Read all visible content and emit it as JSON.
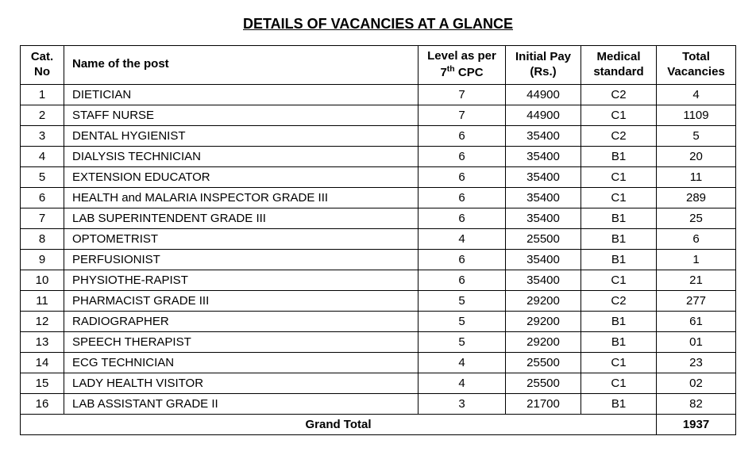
{
  "title": "DETAILS OF VACANCIES AT A GLANCE",
  "table": {
    "headers": {
      "cat": "Cat.\nNo",
      "name": "Name of the post",
      "level_pre": "Level as per\n7",
      "level_sup": "th",
      "level_post": " CPC",
      "pay": "Initial\nPay (Rs.)",
      "med": "Medical\nstandard",
      "vac": "Total\nVacancies"
    },
    "rows": [
      {
        "cat": "1",
        "name": "DIETICIAN",
        "level": "7",
        "pay": "44900",
        "med": "C2",
        "vac": "4"
      },
      {
        "cat": "2",
        "name": "STAFF NURSE",
        "level": "7",
        "pay": "44900",
        "med": "C1",
        "vac": "1109"
      },
      {
        "cat": "3",
        "name": "DENTAL HYGIENIST",
        "level": "6",
        "pay": "35400",
        "med": "C2",
        "vac": "5"
      },
      {
        "cat": "4",
        "name": "DIALYSIS TECHNICIAN",
        "level": "6",
        "pay": "35400",
        "med": "B1",
        "vac": "20"
      },
      {
        "cat": "5",
        "name": "EXTENSION EDUCATOR",
        "level": "6",
        "pay": "35400",
        "med": "C1",
        "vac": "11"
      },
      {
        "cat": "6",
        "name": "HEALTH and MALARIA INSPECTOR GRADE III",
        "level": "6",
        "pay": "35400",
        "med": "C1",
        "vac": "289"
      },
      {
        "cat": "7",
        "name": "LAB SUPERINTENDENT GRADE III",
        "level": "6",
        "pay": "35400",
        "med": "B1",
        "vac": "25"
      },
      {
        "cat": "8",
        "name": "OPTOMETRIST",
        "level": "4",
        "pay": "25500",
        "med": "B1",
        "vac": "6"
      },
      {
        "cat": "9",
        "name": "PERFUSIONIST",
        "level": "6",
        "pay": "35400",
        "med": "B1",
        "vac": "1"
      },
      {
        "cat": "10",
        "name": "PHYSIOTHE-RAPIST",
        "level": "6",
        "pay": "35400",
        "med": "C1",
        "vac": "21"
      },
      {
        "cat": "11",
        "name": "PHARMACIST GRADE III",
        "level": "5",
        "pay": "29200",
        "med": "C2",
        "vac": "277"
      },
      {
        "cat": "12",
        "name": "RADIOGRAPHER",
        "level": "5",
        "pay": "29200",
        "med": "B1",
        "vac": "61"
      },
      {
        "cat": "13",
        "name": "SPEECH THERAPIST",
        "level": "5",
        "pay": "29200",
        "med": "B1",
        "vac": "01"
      },
      {
        "cat": "14",
        "name": "ECG TECHNICIAN",
        "level": "4",
        "pay": "25500",
        "med": "C1",
        "vac": "23"
      },
      {
        "cat": "15",
        "name": "LADY HEALTH VISITOR",
        "level": "4",
        "pay": "25500",
        "med": "C1",
        "vac": "02"
      },
      {
        "cat": "16",
        "name": "LAB ASSISTANT GRADE II",
        "level": "3",
        "pay": "21700",
        "med": "B1",
        "vac": "82"
      }
    ],
    "total": {
      "label": "Grand Total",
      "value": "1937"
    }
  }
}
